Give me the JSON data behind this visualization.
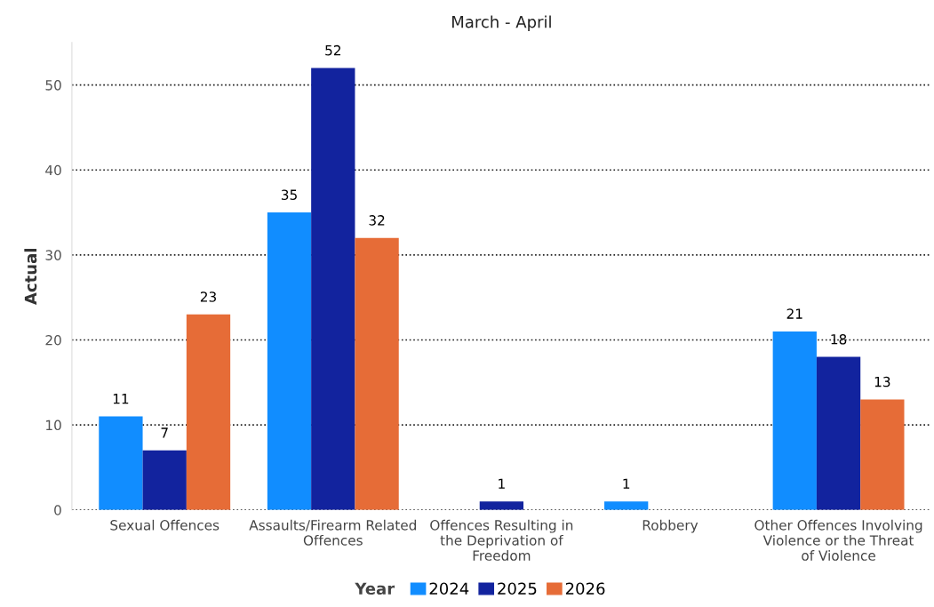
{
  "chart_data": {
    "type": "bar",
    "title": "March - April",
    "ylabel": "Actual",
    "legend_title": "Year",
    "categories": [
      "Sexual Offences",
      "Assaults/Firearm Related Offences",
      "Offences Resulting in the Deprivation of Freedom",
      "Robbery",
      "Other Offences Involving Violence or the Threat of Violence"
    ],
    "series": [
      {
        "name": "2024",
        "color": "#118dff",
        "values": [
          11,
          35,
          null,
          1,
          21
        ]
      },
      {
        "name": "2025",
        "color": "#12239e",
        "values": [
          7,
          52,
          1,
          null,
          18
        ]
      },
      {
        "name": "2026",
        "color": "#e66c37",
        "values": [
          23,
          32,
          null,
          null,
          13
        ]
      }
    ],
    "ylim": [
      0,
      55
    ],
    "yticks": [
      0,
      10,
      20,
      30,
      40,
      50
    ],
    "grid": "y",
    "legend": "bottom",
    "data_labels": true
  }
}
